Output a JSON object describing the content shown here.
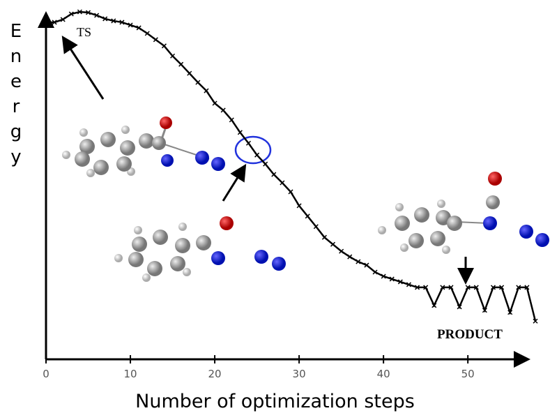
{
  "chart_data": {
    "type": "line",
    "x_label": "Number of optimization steps",
    "y_label": "Energy",
    "annotations": [
      "TS",
      "PRODUCT"
    ],
    "x": [
      0,
      1,
      2,
      3,
      4,
      5,
      6,
      7,
      8,
      9,
      10,
      11,
      12,
      13,
      14,
      15,
      16,
      17,
      18,
      19,
      20,
      21,
      22,
      23,
      24,
      25,
      26,
      27,
      28,
      29,
      30,
      31,
      32,
      33,
      34,
      35,
      36,
      37,
      38,
      39,
      40,
      41,
      42,
      43,
      44,
      45,
      46,
      47,
      48,
      49,
      50,
      51,
      52,
      53,
      54,
      55,
      56,
      57,
      58
    ],
    "series": [
      {
        "name": "Energy",
        "color": "#000000",
        "values": [
          97.0,
          97.0,
          97.8,
          99.4,
          100,
          99.8,
          99.0,
          98.0,
          97.4,
          97.0,
          96.2,
          95.4,
          93.8,
          92.0,
          90.2,
          87.3,
          84.9,
          82.3,
          79.7,
          77.3,
          73.7,
          71.7,
          68.9,
          65.3,
          62.2,
          58.8,
          56.2,
          53.2,
          50.8,
          48.2,
          44.2,
          41.2,
          38.2,
          35.1,
          33.1,
          31.1,
          29.5,
          28.1,
          27.1,
          25.1,
          23.9,
          23.1,
          22.3,
          21.5,
          20.7,
          20.7,
          15.5,
          20.7,
          20.7,
          15.1,
          20.7,
          20.7,
          14.1,
          20.7,
          20.7,
          13.5,
          20.7,
          20.7,
          11.0
        ]
      }
    ],
    "xlim": [
      0,
      58
    ],
    "xticks": [
      0,
      10,
      20,
      30,
      40,
      50
    ],
    "ylim": [
      0,
      100
    ]
  }
}
